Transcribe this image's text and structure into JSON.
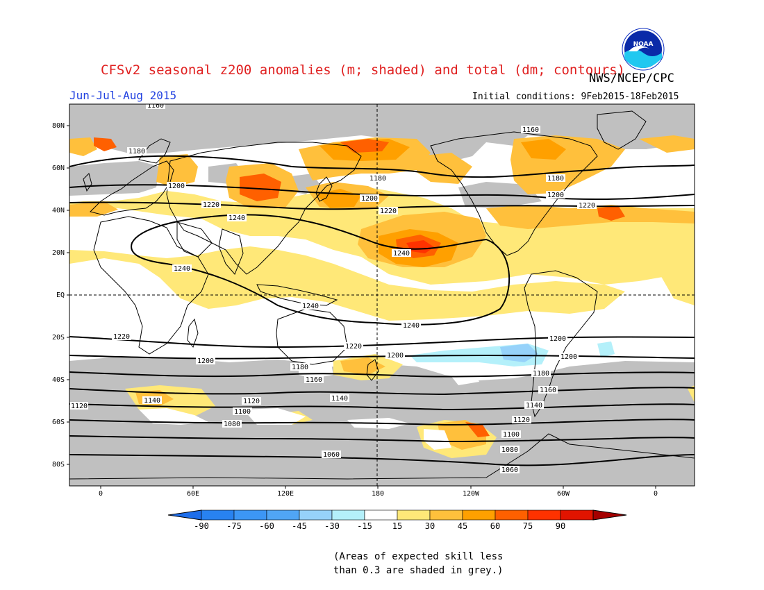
{
  "header": {
    "title": "CFSv2 seasonal z200 anomalies (m; shaded) and total (dm; contours)",
    "agency": "NWS/NCEP/CPC",
    "season": "Jun-Jul-Aug 2015",
    "initial_conditions": "Initial conditions: 9Feb2015-18Feb2015",
    "logo_text": "NOAA"
  },
  "map": {
    "lat_labels": [
      "80N",
      "60N",
      "40N",
      "20N",
      "EQ",
      "20S",
      "40S",
      "60S",
      "80S"
    ],
    "lon_labels": [
      "0",
      "60E",
      "120E",
      "180",
      "120W",
      "60W",
      "0"
    ],
    "contour_labels": [
      "1160",
      "1180",
      "1200",
      "1220",
      "1240",
      "1240",
      "1240",
      "1240",
      "1240",
      "1220",
      "1220",
      "1200",
      "1180",
      "1180",
      "1160",
      "1200",
      "1220",
      "1220",
      "1200",
      "1200",
      "1200",
      "1180",
      "1160",
      "1140",
      "1140",
      "1120",
      "1120",
      "1100",
      "1100",
      "1080",
      "1080",
      "1060",
      "1060",
      "1120",
      "1140",
      "1160",
      "1180",
      "1200",
      "1220"
    ],
    "colors": {
      "land_outline": "#000000",
      "skill_grey": "#c0c0c0",
      "cool_1": "#b4f0fa",
      "cool_2": "#96d2fa",
      "warm_1": "#ffe878",
      "warm_2": "#ffc03c",
      "warm_3": "#ffa000",
      "warm_4": "#ff6000",
      "warm_5": "#ff3200"
    }
  },
  "colorbar": {
    "ticks": [
      "-90",
      "-75",
      "-60",
      "-45",
      "-30",
      "-15",
      "15",
      "30",
      "45",
      "60",
      "75",
      "90"
    ],
    "colors": [
      "#1e6eeb",
      "#2882f0",
      "#3c96f5",
      "#50a5f5",
      "#96d2fa",
      "#b4f0fa",
      "#ffffff",
      "#ffe878",
      "#ffc03c",
      "#ffa000",
      "#ff6000",
      "#ff3200",
      "#e11400",
      "#a50000"
    ]
  },
  "note": {
    "line1": "(Areas of expected skill less",
    "line2": "than 0.3 are shaded in grey.)"
  }
}
